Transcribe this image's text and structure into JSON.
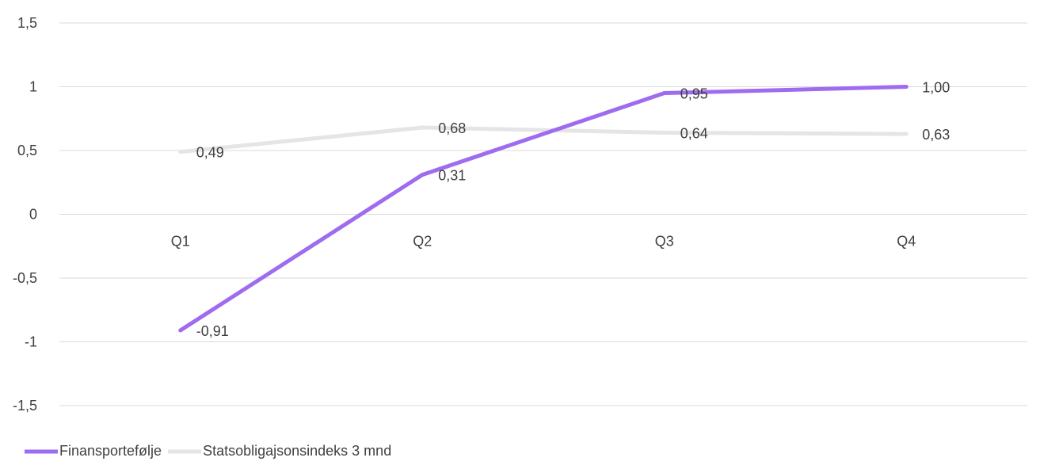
{
  "chart_data": {
    "type": "line",
    "categories": [
      "Q1",
      "Q2",
      "Q3",
      "Q4"
    ],
    "series": [
      {
        "name": "Finansportefølje",
        "color": "#9f6cf0",
        "values": [
          -0.91,
          0.31,
          0.95,
          1.0
        ],
        "labels": [
          "-0,91",
          "0,31",
          "0,95",
          "1,00"
        ]
      },
      {
        "name": "Statsobligajsonsindeks 3 mnd",
        "color": "#e5e5e5",
        "values": [
          0.49,
          0.68,
          0.64,
          0.63
        ],
        "labels": [
          "0,49",
          "0,68",
          "0,64",
          "0,63"
        ]
      }
    ],
    "ylim": [
      -1.5,
      1.5
    ],
    "yticks": [
      1.5,
      1,
      0.5,
      0,
      -0.5,
      -1,
      -1.5
    ],
    "ytick_labels": [
      "1,5",
      "1",
      "0,5",
      "0",
      "-0,5",
      "-1",
      "-1,5"
    ],
    "grid": true,
    "legend_position": "bottom-left",
    "title": "",
    "xlabel": "",
    "ylabel": ""
  }
}
